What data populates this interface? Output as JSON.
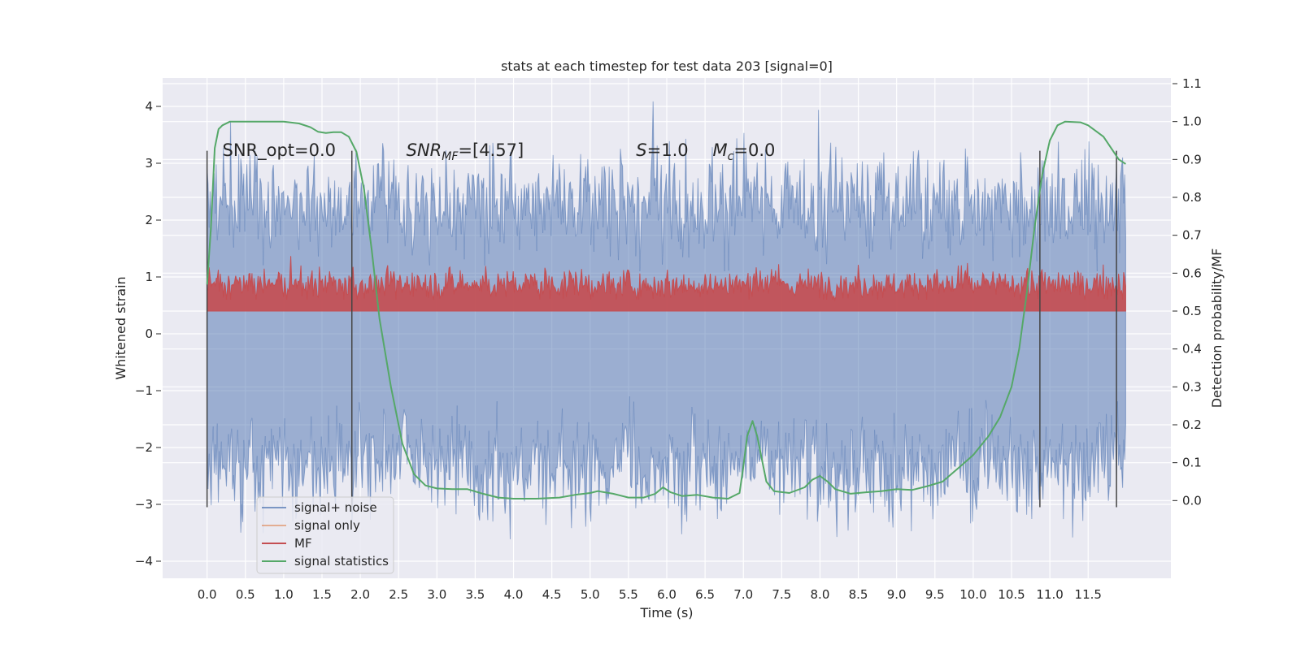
{
  "chart_data": {
    "type": "line",
    "title": "stats at each timestep for test data 203 [signal=0]",
    "xlabel": "Time (s)",
    "ylabel": "Whitened strain",
    "ylabel_right": "Detection probability/MF",
    "xlim": [
      -0.58,
      12.58
    ],
    "ylim": [
      -4.3,
      4.5
    ],
    "ylim_right": [
      -0.205,
      1.115
    ],
    "x_ticks": [
      "0.0",
      "0.5",
      "1.0",
      "1.5",
      "2.0",
      "2.5",
      "3.0",
      "3.5",
      "4.0",
      "4.5",
      "5.0",
      "5.5",
      "6.0",
      "6.5",
      "7.0",
      "7.5",
      "8.0",
      "8.5",
      "9.0",
      "9.5",
      "10.0",
      "10.5",
      "11.0",
      "11.5"
    ],
    "y_ticks_left": [
      "−4",
      "−3",
      "−2",
      "−1",
      "0",
      "1",
      "2",
      "3",
      "4"
    ],
    "y_ticks_right": [
      "0.0",
      "0.1",
      "0.2",
      "0.3",
      "0.4",
      "0.5",
      "0.6",
      "0.7",
      "0.8",
      "0.9",
      "1.0",
      "1.1"
    ],
    "grid": true,
    "legend_placement": "lower-left",
    "annotations": [
      {
        "text": "SNR_opt=0.0",
        "x": 0.2,
        "y": 3.2
      },
      {
        "text": "SNR_MF=[4.57]",
        "x": 2.6,
        "y": 3.2
      },
      {
        "text": "S=1.0",
        "x": 5.6,
        "y": 3.2
      },
      {
        "text": "M_c=0.0",
        "x": 6.6,
        "y": 3.2
      }
    ],
    "vertical_markers_x": [
      0.0,
      1.89,
      10.87,
      11.87
    ],
    "series": [
      {
        "name": "signal+ noise",
        "color": "#4c72b0",
        "axis": "left",
        "envelope": {
          "x_range": [
            0.0,
            11.99
          ],
          "typical_lower": -2.3,
          "typical_upper": 2.3,
          "peak_max": 4.1,
          "peak_min": -3.9
        }
      },
      {
        "name": "signal only",
        "color": "#dd8452",
        "axis": "left",
        "values": []
      },
      {
        "name": "MF",
        "color": "#c44e52",
        "axis": "right",
        "envelope": {
          "x_range": [
            0.0,
            11.99
          ],
          "base": 0.5,
          "typical_upper": 0.57,
          "peak_max": 0.66
        }
      },
      {
        "name": "signal statistics",
        "color": "#55a868",
        "axis": "right",
        "x": [
          0.0,
          0.05,
          0.1,
          0.15,
          0.2,
          0.3,
          0.5,
          0.8,
          1.0,
          1.2,
          1.35,
          1.45,
          1.55,
          1.65,
          1.75,
          1.85,
          1.95,
          2.05,
          2.15,
          2.25,
          2.4,
          2.55,
          2.7,
          2.85,
          3.0,
          3.2,
          3.4,
          3.6,
          3.8,
          4.0,
          4.3,
          4.6,
          4.8,
          5.0,
          5.1,
          5.3,
          5.5,
          5.7,
          5.85,
          5.95,
          6.05,
          6.2,
          6.4,
          6.6,
          6.8,
          6.95,
          7.0,
          7.05,
          7.12,
          7.18,
          7.25,
          7.3,
          7.4,
          7.6,
          7.8,
          7.9,
          8.0,
          8.1,
          8.2,
          8.4,
          8.6,
          8.8,
          9.0,
          9.2,
          9.4,
          9.6,
          9.8,
          10.0,
          10.2,
          10.35,
          10.5,
          10.6,
          10.7,
          10.8,
          10.9,
          11.0,
          11.1,
          11.2,
          11.4,
          11.5,
          11.6,
          11.7,
          11.8,
          11.9,
          11.99
        ],
        "values": [
          0.57,
          0.72,
          0.93,
          0.98,
          0.99,
          1.0,
          1.0,
          1.0,
          1.0,
          0.995,
          0.985,
          0.973,
          0.97,
          0.972,
          0.972,
          0.96,
          0.92,
          0.82,
          0.66,
          0.48,
          0.3,
          0.15,
          0.07,
          0.04,
          0.032,
          0.03,
          0.03,
          0.018,
          0.008,
          0.005,
          0.005,
          0.008,
          0.015,
          0.02,
          0.025,
          0.018,
          0.008,
          0.008,
          0.018,
          0.035,
          0.022,
          0.012,
          0.015,
          0.008,
          0.005,
          0.02,
          0.09,
          0.17,
          0.21,
          0.17,
          0.1,
          0.05,
          0.025,
          0.02,
          0.035,
          0.055,
          0.065,
          0.05,
          0.03,
          0.018,
          0.022,
          0.025,
          0.03,
          0.028,
          0.038,
          0.05,
          0.085,
          0.12,
          0.17,
          0.22,
          0.3,
          0.4,
          0.55,
          0.72,
          0.86,
          0.95,
          0.99,
          1.0,
          0.998,
          0.99,
          0.975,
          0.96,
          0.93,
          0.9,
          0.888
        ]
      }
    ]
  }
}
